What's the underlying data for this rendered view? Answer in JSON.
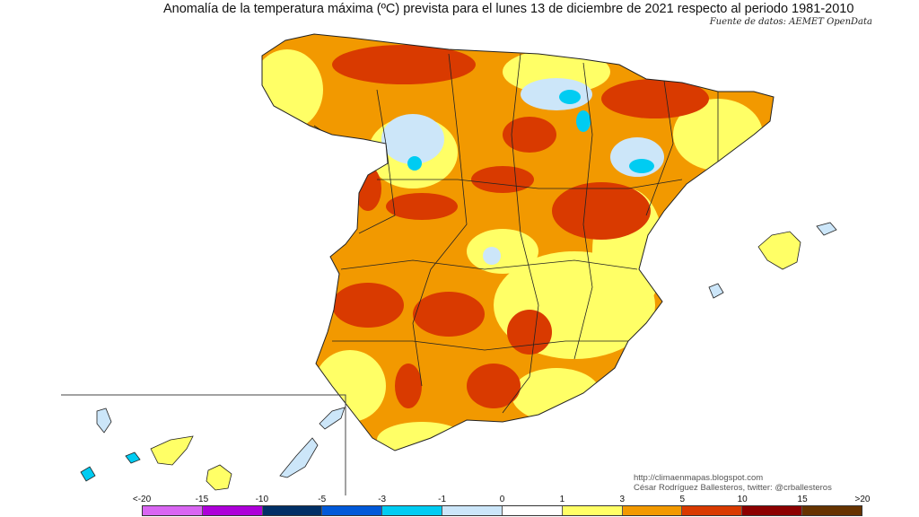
{
  "title": "Anomalía de la temperatura máxima (ºC) prevista para el lunes 13 de diciembre de 2021 respecto al periodo 1981-2010",
  "source": "Fuente de datos: AEMET OpenData",
  "credit": {
    "url": "http://climaenmapas.blogspot.com",
    "author": "César Rodríguez Ballesteros, twitter: @crballesteros"
  },
  "legend": {
    "labels": [
      "<-20",
      "-15",
      "-10",
      "-5",
      "-3",
      "-1",
      "0",
      "1",
      "3",
      "5",
      "10",
      "15",
      ">20"
    ],
    "colors": [
      "#d966f2",
      "#ad00d9",
      "#002f66",
      "#0059d9",
      "#00ccf2",
      "#cce6f9",
      "#ffffff",
      "#ffff66",
      "#f29900",
      "#d93a00",
      "#8c0000",
      "#663300"
    ]
  }
}
